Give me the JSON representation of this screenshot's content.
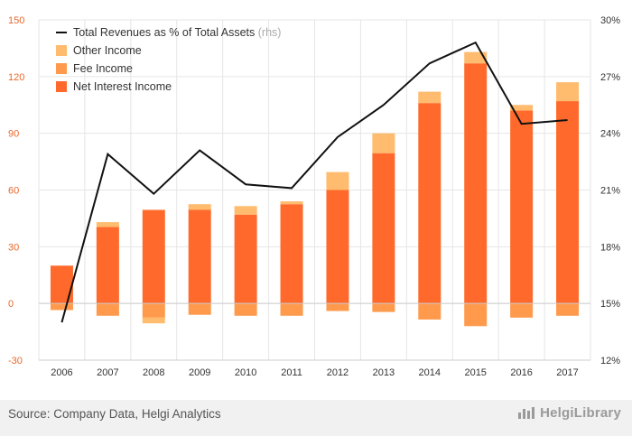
{
  "colors": {
    "net_interest": "#ff6a2c",
    "fee": "#ff9a4d",
    "other": "#ffbb6e",
    "line": "#111111",
    "left_axis_text": "#e8682a"
  },
  "footer": {
    "source": "Source: Company Data, Helgi Analytics",
    "brand": "HelgiLibrary",
    "brand_icon": "bar-chart-logo-icon"
  },
  "chart_data": {
    "type": "bar",
    "categories": [
      "2006",
      "2007",
      "2008",
      "2009",
      "2010",
      "2011",
      "2012",
      "2013",
      "2014",
      "2015",
      "2016",
      "2017"
    ],
    "ylim": [
      -30,
      150
    ],
    "yticks": [
      -30,
      0,
      30,
      60,
      90,
      120,
      150
    ],
    "y2lim": [
      12,
      30
    ],
    "y2ticks": [
      12,
      15,
      18,
      21,
      24,
      27,
      30
    ],
    "y2_tick_labels": [
      "12%",
      "15%",
      "18%",
      "21%",
      "24%",
      "27%",
      "30%"
    ],
    "legend_position": "top-left",
    "series": [
      {
        "name": "Net Interest Income",
        "color": "#ff6a2c",
        "values": [
          20,
          40.5,
          49.5,
          49.5,
          47,
          52.5,
          60,
          79.5,
          106,
          127,
          102,
          107
        ]
      },
      {
        "name": "Fee Income",
        "color": "#ff9a4d",
        "values": [
          -3.5,
          -6.5,
          -7.5,
          -6,
          -6.5,
          -6.5,
          -4,
          -4.5,
          -8.5,
          -12,
          -7.5,
          -6.5
        ]
      },
      {
        "name": "Other Income",
        "color": "#ffbb6e",
        "values": [
          0,
          2.5,
          -3,
          3,
          4.5,
          1.5,
          9.5,
          10.5,
          6,
          6,
          3,
          10
        ]
      }
    ],
    "line_series": {
      "name": "Total Revenues as % of Total Assets",
      "note": "(rhs)",
      "axis": "right",
      "values": [
        14.0,
        22.9,
        20.8,
        23.1,
        21.3,
        21.1,
        23.8,
        25.5,
        27.7,
        28.8,
        24.5,
        24.7
      ]
    }
  }
}
